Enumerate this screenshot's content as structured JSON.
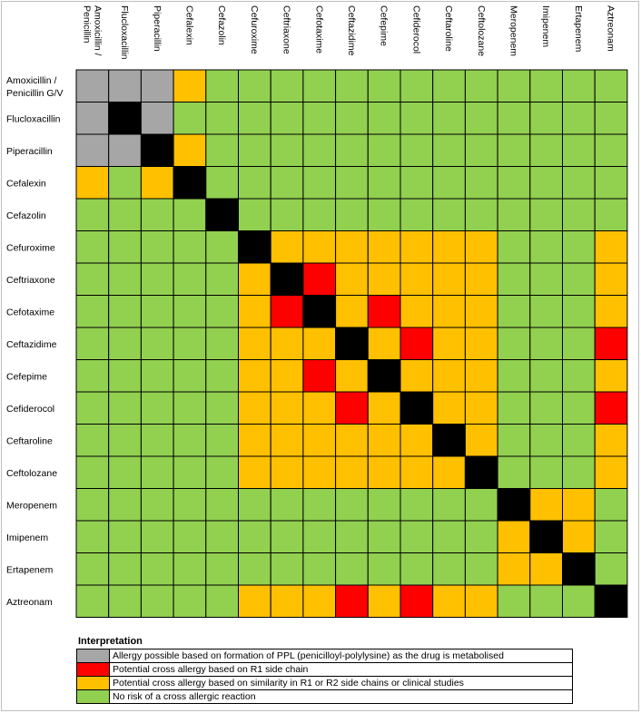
{
  "colors": {
    "G": "#a6a6a6",
    "K": "#000000",
    "Y": "#ffc000",
    "R": "#ff0000",
    "N": "#92d050"
  },
  "chart_data": {
    "type": "heatmap",
    "title": "",
    "columns": [
      "Amoxicillin / Penicillin",
      "Flucloxacillin",
      "Piperacillin",
      "Cefalexin",
      "Cefazolin",
      "Cefuroxime",
      "Ceftriaxone",
      "Cefotaxime",
      "Ceftazidime",
      "Cefepime",
      "Cefiderocol",
      "Ceftaroline",
      "Ceftolozane",
      "Meropenem",
      "Imipenem",
      "Ertapenem",
      "Aztreonam"
    ],
    "rows": [
      "Amoxicillin / Penicillin G/V",
      "Flucloxacillin",
      "Piperacillin",
      "Cefalexin",
      "Cefazolin",
      "Cefuroxime",
      "Ceftriaxone",
      "Cefotaxime",
      "Ceftazidime",
      "Cefepime",
      "Cefiderocol",
      "Ceftaroline",
      "Ceftolozane",
      "Meropenem",
      "Imipenem",
      "Ertapenem",
      "Aztreonam"
    ],
    "matrix": [
      [
        "G",
        "G",
        "G",
        "Y",
        "N",
        "N",
        "N",
        "N",
        "N",
        "N",
        "N",
        "N",
        "N",
        "N",
        "N",
        "N",
        "N"
      ],
      [
        "G",
        "K",
        "G",
        "N",
        "N",
        "N",
        "N",
        "N",
        "N",
        "N",
        "N",
        "N",
        "N",
        "N",
        "N",
        "N",
        "N"
      ],
      [
        "G",
        "G",
        "K",
        "Y",
        "N",
        "N",
        "N",
        "N",
        "N",
        "N",
        "N",
        "N",
        "N",
        "N",
        "N",
        "N",
        "N"
      ],
      [
        "Y",
        "N",
        "Y",
        "K",
        "N",
        "N",
        "N",
        "N",
        "N",
        "N",
        "N",
        "N",
        "N",
        "N",
        "N",
        "N",
        "N"
      ],
      [
        "N",
        "N",
        "N",
        "N",
        "K",
        "N",
        "N",
        "N",
        "N",
        "N",
        "N",
        "N",
        "N",
        "N",
        "N",
        "N",
        "N"
      ],
      [
        "N",
        "N",
        "N",
        "N",
        "N",
        "K",
        "Y",
        "Y",
        "Y",
        "Y",
        "Y",
        "Y",
        "Y",
        "N",
        "N",
        "N",
        "Y"
      ],
      [
        "N",
        "N",
        "N",
        "N",
        "N",
        "Y",
        "K",
        "R",
        "Y",
        "Y",
        "Y",
        "Y",
        "Y",
        "N",
        "N",
        "N",
        "Y"
      ],
      [
        "N",
        "N",
        "N",
        "N",
        "N",
        "Y",
        "R",
        "K",
        "Y",
        "R",
        "Y",
        "Y",
        "Y",
        "N",
        "N",
        "N",
        "Y"
      ],
      [
        "N",
        "N",
        "N",
        "N",
        "N",
        "Y",
        "Y",
        "Y",
        "K",
        "Y",
        "R",
        "Y",
        "Y",
        "N",
        "N",
        "N",
        "R"
      ],
      [
        "N",
        "N",
        "N",
        "N",
        "N",
        "Y",
        "Y",
        "R",
        "Y",
        "K",
        "Y",
        "Y",
        "Y",
        "N",
        "N",
        "N",
        "Y"
      ],
      [
        "N",
        "N",
        "N",
        "N",
        "N",
        "Y",
        "Y",
        "Y",
        "R",
        "Y",
        "K",
        "Y",
        "Y",
        "N",
        "N",
        "N",
        "R"
      ],
      [
        "N",
        "N",
        "N",
        "N",
        "N",
        "Y",
        "Y",
        "Y",
        "Y",
        "Y",
        "Y",
        "K",
        "Y",
        "N",
        "N",
        "N",
        "Y"
      ],
      [
        "N",
        "N",
        "N",
        "N",
        "N",
        "Y",
        "Y",
        "Y",
        "Y",
        "Y",
        "Y",
        "Y",
        "K",
        "N",
        "N",
        "N",
        "Y"
      ],
      [
        "N",
        "N",
        "N",
        "N",
        "N",
        "N",
        "N",
        "N",
        "N",
        "N",
        "N",
        "N",
        "N",
        "K",
        "Y",
        "Y",
        "N"
      ],
      [
        "N",
        "N",
        "N",
        "N",
        "N",
        "N",
        "N",
        "N",
        "N",
        "N",
        "N",
        "N",
        "N",
        "Y",
        "K",
        "Y",
        "N"
      ],
      [
        "N",
        "N",
        "N",
        "N",
        "N",
        "N",
        "N",
        "N",
        "N",
        "N",
        "N",
        "N",
        "N",
        "Y",
        "Y",
        "K",
        "N"
      ],
      [
        "N",
        "N",
        "N",
        "N",
        "N",
        "Y",
        "Y",
        "Y",
        "R",
        "Y",
        "R",
        "Y",
        "Y",
        "N",
        "N",
        "N",
        "K"
      ]
    ]
  },
  "legend": {
    "title": "Interpretation",
    "items": [
      {
        "key": "G",
        "text": "Allergy possible based on formation of PPL (penicilloyl-polylysine) as the drug is metabolised"
      },
      {
        "key": "R",
        "text": "Potential cross allergy based on R1 side chain"
      },
      {
        "key": "Y",
        "text": "Potential cross allergy based on similarity in R1 or R2 side chains or clinical studies"
      },
      {
        "key": "N",
        "text": "No risk of a cross allergic reaction"
      }
    ]
  }
}
